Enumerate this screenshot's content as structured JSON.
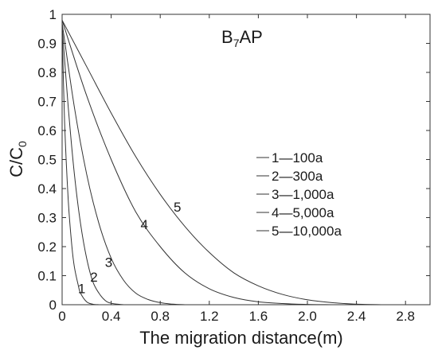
{
  "chart_data": {
    "type": "line",
    "title": "B",
    "title_subscript": "7",
    "title_suffix": "AP",
    "xlabel": "The migration distance(m)",
    "ylabel_main": "C/C",
    "ylabel_subscript": "0",
    "xlim": [
      0,
      3.0
    ],
    "ylim": [
      0,
      1.0
    ],
    "xticks": [
      "0",
      "0.4",
      "0.8",
      "1.2",
      "1.6",
      "2.0",
      "2.4",
      "2.8"
    ],
    "yticks": [
      "0",
      "0.1",
      "0.2",
      "0.3",
      "0.4",
      "0.5",
      "0.6",
      "0.7",
      "0.8",
      "0.9",
      "1"
    ],
    "grid": false,
    "legend_position": "right",
    "line_color": "#333333",
    "series": [
      {
        "name": "1—100a",
        "label": "1",
        "x": [
          0,
          0.02,
          0.05,
          0.08,
          0.1,
          0.13,
          0.15,
          0.2,
          0.25,
          0.3
        ],
        "y": [
          0.96,
          0.63,
          0.36,
          0.2,
          0.13,
          0.07,
          0.04,
          0.01,
          0.002,
          0
        ]
      },
      {
        "name": "2—300a",
        "label": "2",
        "x": [
          0,
          0.05,
          0.1,
          0.15,
          0.2,
          0.25,
          0.3,
          0.35,
          0.4,
          0.5
        ],
        "y": [
          0.96,
          0.68,
          0.45,
          0.28,
          0.16,
          0.08,
          0.04,
          0.015,
          0.005,
          0
        ]
      },
      {
        "name": "3—1,000a",
        "label": "3",
        "x": [
          0,
          0.1,
          0.2,
          0.3,
          0.4,
          0.5,
          0.6,
          0.7,
          0.8,
          0.9,
          1.0
        ],
        "y": [
          0.97,
          0.68,
          0.45,
          0.28,
          0.16,
          0.085,
          0.04,
          0.018,
          0.007,
          0.002,
          0
        ]
      },
      {
        "name": "4—5,000a",
        "label": "4",
        "x": [
          0,
          0.2,
          0.4,
          0.6,
          0.8,
          1.0,
          1.2,
          1.4,
          1.6,
          1.8,
          2.0,
          2.2
        ],
        "y": [
          0.98,
          0.72,
          0.5,
          0.32,
          0.2,
          0.11,
          0.055,
          0.025,
          0.01,
          0.004,
          0.001,
          0
        ]
      },
      {
        "name": "5—10,000a",
        "label": "5",
        "x": [
          0,
          0.2,
          0.4,
          0.6,
          0.8,
          1.0,
          1.2,
          1.4,
          1.6,
          1.8,
          2.0,
          2.2,
          2.4,
          2.6
        ],
        "y": [
          0.98,
          0.82,
          0.66,
          0.51,
          0.38,
          0.27,
          0.18,
          0.11,
          0.065,
          0.035,
          0.017,
          0.007,
          0.002,
          0
        ]
      }
    ],
    "curve_labels": [
      {
        "text": "1",
        "x": 0.16,
        "y": 0.04
      },
      {
        "text": "2",
        "x": 0.26,
        "y": 0.08
      },
      {
        "text": "3",
        "x": 0.38,
        "y": 0.13
      },
      {
        "text": "4",
        "x": 0.67,
        "y": 0.26
      },
      {
        "text": "5",
        "x": 0.94,
        "y": 0.32
      }
    ]
  }
}
